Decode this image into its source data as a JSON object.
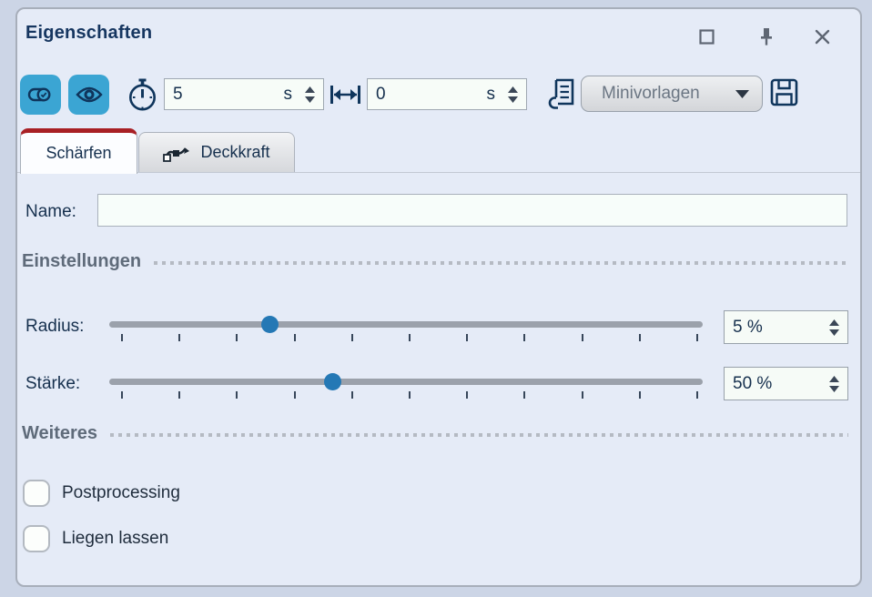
{
  "window": {
    "title": "Eigenschaften"
  },
  "toolbar": {
    "duration_field": {
      "value": "5",
      "unit": "s"
    },
    "offset_field": {
      "value": "0",
      "unit": "s"
    },
    "templates_dropdown": {
      "selected": "Minivorlagen"
    }
  },
  "tabs": {
    "sharpen": {
      "label": "Schärfen",
      "active": true
    },
    "opacity": {
      "label": "Deckkraft",
      "active": false
    }
  },
  "name_field": {
    "label": "Name:",
    "value": ""
  },
  "sections": {
    "settings": "Einstellungen",
    "more": "Weiteres"
  },
  "sliders": {
    "radius": {
      "label": "Radius:",
      "value": "5 %",
      "percent": 27,
      "ticks": 11
    },
    "strength": {
      "label": "Stärke:",
      "value": "50 %",
      "percent": 37.6,
      "ticks": 11
    }
  },
  "checkboxes": {
    "postprocessing": {
      "label": "Postprocessing",
      "checked": false
    },
    "keep": {
      "label": "Liegen lassen",
      "checked": false
    }
  },
  "icons": [
    "maximize-icon",
    "pin-icon",
    "close-icon",
    "toggle-check-icon",
    "eye-icon",
    "stopwatch-icon",
    "width-icon",
    "script-icon",
    "dropdown-caret-icon",
    "save-icon",
    "keyframe-curve-icon",
    "spinner-up-icon",
    "spinner-down-icon"
  ],
  "colors": {
    "outer_bg": "#ccd5e6",
    "panel_bg": "#e5ebf7",
    "accent_button_blue": "#3ba5d3",
    "slider_thumb_blue": "#2478b5",
    "active_tab_stripe_red": "#a82025",
    "icon_navy": "#0f355c",
    "title_navy": "#163660"
  }
}
